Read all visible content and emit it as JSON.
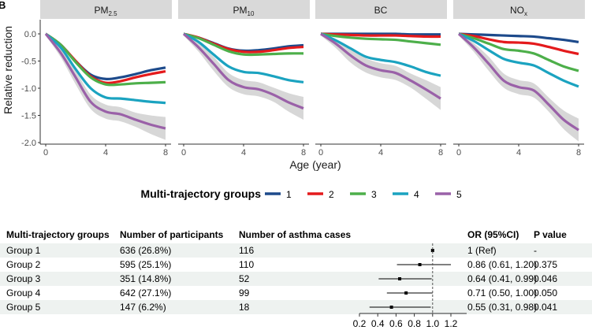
{
  "panel_label": "B",
  "chart_data": [
    {
      "type": "line",
      "panels": [
        {
          "label": {
            "main": "PM",
            "sub": "2.5"
          },
          "series": [
            [
              0,
              -0.2,
              -0.5,
              -0.75,
              -0.83,
              -0.8,
              -0.74,
              -0.67,
              -0.62
            ],
            [
              0,
              -0.2,
              -0.5,
              -0.78,
              -0.9,
              -0.87,
              -0.8,
              -0.74,
              -0.69
            ],
            [
              0,
              -0.2,
              -0.52,
              -0.8,
              -0.93,
              -0.93,
              -0.91,
              -0.9,
              -0.89
            ],
            [
              0,
              -0.25,
              -0.65,
              -1.0,
              -1.17,
              -1.19,
              -1.22,
              -1.25,
              -1.27
            ],
            [
              0,
              -0.35,
              -0.8,
              -1.25,
              -1.43,
              -1.48,
              -1.58,
              -1.67,
              -1.74
            ]
          ]
        },
        {
          "label": {
            "main": "PM",
            "sub": "10"
          },
          "series": [
            [
              0,
              -0.07,
              -0.17,
              -0.27,
              -0.31,
              -0.3,
              -0.27,
              -0.23,
              -0.21
            ],
            [
              0,
              -0.07,
              -0.18,
              -0.28,
              -0.33,
              -0.33,
              -0.3,
              -0.26,
              -0.24
            ],
            [
              0,
              -0.08,
              -0.2,
              -0.32,
              -0.38,
              -0.38,
              -0.37,
              -0.36,
              -0.36
            ],
            [
              0,
              -0.15,
              -0.38,
              -0.6,
              -0.7,
              -0.72,
              -0.78,
              -0.85,
              -0.89
            ],
            [
              0,
              -0.25,
              -0.55,
              -0.85,
              -0.98,
              -1.02,
              -1.12,
              -1.26,
              -1.37
            ]
          ]
        },
        {
          "label": {
            "main": "BC",
            "sub": ""
          },
          "series": [
            [
              0,
              0,
              0,
              0,
              0,
              0,
              -0.01,
              -0.01,
              -0.01
            ],
            [
              0,
              -0.01,
              -0.02,
              -0.03,
              -0.03,
              -0.03,
              -0.04,
              -0.05,
              -0.05
            ],
            [
              0,
              -0.04,
              -0.07,
              -0.09,
              -0.1,
              -0.11,
              -0.14,
              -0.17,
              -0.2
            ],
            [
              0,
              -0.12,
              -0.27,
              -0.42,
              -0.48,
              -0.52,
              -0.6,
              -0.7,
              -0.77
            ],
            [
              0,
              -0.18,
              -0.4,
              -0.58,
              -0.67,
              -0.72,
              -0.86,
              -1.02,
              -1.19
            ]
          ]
        },
        {
          "label": {
            "main": "NO",
            "sub": "x"
          },
          "series": [
            [
              0,
              -0.01,
              -0.02,
              -0.03,
              -0.04,
              -0.05,
              -0.08,
              -0.11,
              -0.15
            ],
            [
              0,
              -0.04,
              -0.1,
              -0.15,
              -0.16,
              -0.18,
              -0.24,
              -0.31,
              -0.37
            ],
            [
              0,
              -0.08,
              -0.18,
              -0.28,
              -0.31,
              -0.36,
              -0.48,
              -0.6,
              -0.68
            ],
            [
              0,
              -0.13,
              -0.3,
              -0.46,
              -0.53,
              -0.58,
              -0.72,
              -0.86,
              -0.97
            ],
            [
              0,
              -0.25,
              -0.55,
              -0.86,
              -0.98,
              -1.04,
              -1.3,
              -1.58,
              -1.77
            ]
          ]
        }
      ],
      "x": [
        0,
        1,
        2,
        3,
        4,
        5,
        6,
        7,
        8
      ],
      "xlabel": "Age (year)",
      "ylabel": "Relative reduction",
      "xlim": [
        0,
        8
      ],
      "ylim": [
        -2.0,
        0.0
      ],
      "xticks": [
        "0",
        "4",
        "8"
      ],
      "yticks": [
        "0.0",
        "-0.5",
        "-1.0",
        "-1.5",
        "-2.0"
      ],
      "confidence_band": "gray, shown for group 5",
      "legend": {
        "title": "Multi-trajectory groups",
        "position": "bottom",
        "entries": [
          "1",
          "2",
          "3",
          "4",
          "5"
        ],
        "colors": [
          "#1d4a8b",
          "#e41a1c",
          "#4daf4a",
          "#1ba3c0",
          "#9a61a8"
        ]
      },
      "grid": false
    },
    {
      "type": "table",
      "columns": [
        "Multi-trajectory groups",
        "Number of participants",
        "Number of asthma cases",
        "OR (95%CI)",
        "P value"
      ],
      "rows": [
        {
          "group": "Group 1",
          "participants": "636 (26.8%)",
          "cases": "116",
          "or_text": "1 (Ref)",
          "p": "-",
          "or": 1.0,
          "lo": 1.0,
          "hi": 1.0
        },
        {
          "group": "Group 2",
          "participants": "595 (25.1%)",
          "cases": "110",
          "or_text": "0.86 (0.61, 1.20)",
          "p": "0.375",
          "or": 0.86,
          "lo": 0.61,
          "hi": 1.2
        },
        {
          "group": "Group 3",
          "participants": "351 (14.8%)",
          "cases": "52",
          "or_text": "0.64 (0.41, 0.99)",
          "p": "0.046",
          "or": 0.64,
          "lo": 0.41,
          "hi": 0.99
        },
        {
          "group": "Group 4",
          "participants": "642 (27.1%)",
          "cases": "99",
          "or_text": "0.71 (0.50, 1.00)",
          "p": "0.050",
          "or": 0.71,
          "lo": 0.5,
          "hi": 1.0
        },
        {
          "group": "Group 5",
          "participants": "147 (6.2%)",
          "cases": "18",
          "or_text": "0.55 (0.31, 0.98)",
          "p": "0.041",
          "or": 0.55,
          "lo": 0.31,
          "hi": 0.98
        }
      ],
      "forest_xticks": [
        "0.2",
        "0.4",
        "0.6",
        "0.8",
        "1.0",
        "1.2"
      ],
      "forest_xlim": [
        0.2,
        1.2
      ],
      "reference_line": 1.0,
      "stripe_color": "#eef2f0"
    }
  ]
}
